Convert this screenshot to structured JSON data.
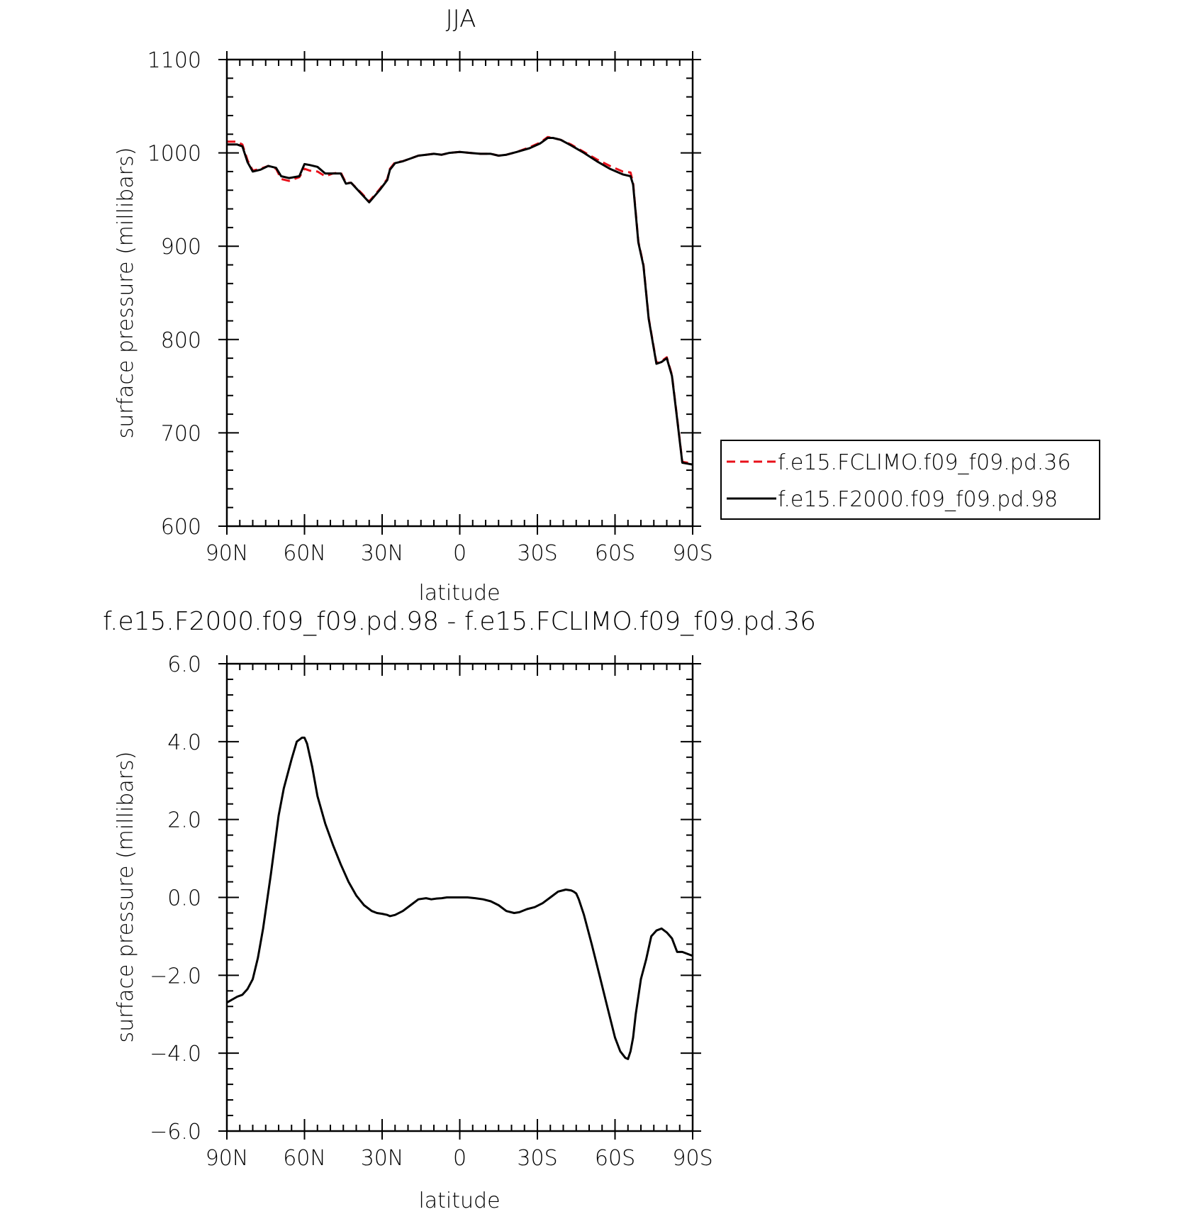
{
  "chart_data": [
    {
      "type": "line",
      "title": "JJA",
      "xlabel": "latitude",
      "ylabel": "surface pressure (millibars)",
      "xlim": [
        90,
        -90
      ],
      "ylim": [
        600,
        1100
      ],
      "x_ticks": [
        90,
        60,
        30,
        0,
        -30,
        -60,
        -90
      ],
      "x_tick_labels": [
        "90N",
        "60N",
        "30N",
        "0",
        "30S",
        "60S",
        "90S"
      ],
      "y_ticks": [
        600,
        700,
        800,
        900,
        1000,
        1100
      ],
      "y_tick_labels": [
        "600",
        "700",
        "800",
        "900",
        "1000",
        "1100"
      ],
      "grid": false,
      "legend_position": "right",
      "series": [
        {
          "name": "f.e15.FCLIMO.f09_f09.pd.36",
          "color": "#e8101a",
          "dash": "dashed",
          "x": [
            90,
            86,
            84,
            82,
            80,
            77,
            74,
            71,
            69,
            66,
            62,
            60,
            58,
            55,
            52,
            49,
            46,
            44,
            42,
            38,
            35,
            31,
            28,
            27,
            25,
            22,
            19,
            16,
            13,
            10,
            7,
            4,
            0,
            -4,
            -8,
            -12,
            -15,
            -18,
            -22,
            -27,
            -31,
            -34,
            -36,
            -39,
            -43,
            -48,
            -53,
            -58,
            -63,
            -66,
            -67,
            -69,
            -71,
            -73,
            -76,
            -78,
            -80,
            -82,
            -84,
            -86,
            -88,
            -90
          ],
          "y": [
            1012,
            1012,
            1009,
            992,
            981,
            983,
            986,
            983,
            972,
            970,
            974,
            983,
            981,
            980,
            975,
            978,
            979,
            968,
            968,
            957,
            948,
            961,
            972,
            983,
            990,
            991,
            994,
            997,
            998,
            999,
            998,
            1000,
            1001,
            1000,
            999,
            999,
            997,
            998,
            1001,
            1006,
            1011,
            1017,
            1016,
            1014,
            1009,
            1001,
            993,
            986,
            980,
            979,
            968,
            905,
            880,
            823,
            775,
            777,
            781,
            762,
            716,
            669,
            668,
            667
          ]
        },
        {
          "name": "f.e15.F2000.f09_f09.pd.98",
          "color": "#000000",
          "dash": "solid",
          "x": [
            90,
            86,
            84,
            82,
            80,
            77,
            74,
            71,
            69,
            66,
            62,
            60,
            58,
            55,
            52,
            49,
            46,
            44,
            42,
            38,
            35,
            31,
            28,
            27,
            25,
            22,
            19,
            16,
            13,
            10,
            7,
            4,
            0,
            -4,
            -8,
            -12,
            -15,
            -18,
            -22,
            -27,
            -31,
            -34,
            -36,
            -39,
            -43,
            -48,
            -53,
            -58,
            -63,
            -66,
            -67,
            -69,
            -71,
            -73,
            -76,
            -78,
            -80,
            -82,
            -84,
            -86,
            -88,
            -90
          ],
          "y": [
            1009,
            1009,
            1007,
            990,
            980,
            982,
            986,
            984,
            975,
            973,
            975,
            988,
            987,
            985,
            978,
            978,
            978,
            967,
            968,
            956,
            947,
            960,
            971,
            982,
            989,
            991,
            994,
            997,
            998,
            999,
            998,
            1000,
            1001,
            1000,
            999,
            999,
            997,
            998,
            1001,
            1005,
            1010,
            1016,
            1016,
            1014,
            1008,
            1000,
            991,
            983,
            977,
            975,
            966,
            904,
            879,
            822,
            774,
            776,
            780,
            761,
            715,
            668,
            667,
            666
          ]
        }
      ]
    },
    {
      "type": "line",
      "title": "f.e15.F2000.f09_f09.pd.98 - f.e15.FCLIMO.f09_f09.pd.36",
      "xlabel": "latitude",
      "ylabel": "surface pressure (millibars)",
      "xlim": [
        90,
        -90
      ],
      "ylim": [
        -6,
        6
      ],
      "x_ticks": [
        90,
        60,
        30,
        0,
        -30,
        -60,
        -90
      ],
      "x_tick_labels": [
        "90N",
        "60N",
        "30N",
        "0",
        "30S",
        "60S",
        "90S"
      ],
      "y_ticks": [
        -6,
        -4,
        -2,
        0,
        2,
        4,
        6
      ],
      "y_tick_labels": [
        "−6.0",
        "−4.0",
        "−2.0",
        "0.0",
        "2.0",
        "4.0",
        "6.0"
      ],
      "grid": false,
      "series": [
        {
          "color": "#000000",
          "dash": "solid",
          "x": [
            90,
            86,
            84,
            82,
            80,
            78,
            76,
            73,
            70,
            68,
            65,
            63,
            61,
            60,
            59,
            57,
            55,
            52,
            49,
            46,
            43,
            40,
            37,
            34,
            32,
            30,
            28,
            27,
            25,
            22,
            19,
            16,
            13,
            11,
            9,
            7,
            5,
            2,
            0,
            -3,
            -6,
            -9,
            -12,
            -15,
            -18,
            -21,
            -23,
            -26,
            -29,
            -32,
            -35,
            -38,
            -41,
            -43,
            -44,
            -45,
            -46,
            -48,
            -51,
            -54,
            -57,
            -60,
            -62,
            -64,
            -65,
            -66,
            -67,
            -68,
            -70,
            -72,
            -74,
            -76,
            -78,
            -80,
            -82,
            -84,
            -86,
            -88,
            -90
          ],
          "y": [
            -2.7,
            -2.55,
            -2.5,
            -2.35,
            -2.1,
            -1.55,
            -0.8,
            0.6,
            2.1,
            2.8,
            3.55,
            4.0,
            4.1,
            4.1,
            3.95,
            3.35,
            2.6,
            1.9,
            1.35,
            0.85,
            0.4,
            0.05,
            -0.2,
            -0.35,
            -0.4,
            -0.42,
            -0.45,
            -0.48,
            -0.45,
            -0.35,
            -0.2,
            -0.05,
            -0.02,
            -0.05,
            -0.03,
            -0.02,
            0.0,
            0.0,
            0.0,
            0.0,
            -0.02,
            -0.05,
            -0.1,
            -0.2,
            -0.35,
            -0.4,
            -0.38,
            -0.3,
            -0.25,
            -0.15,
            0.0,
            0.15,
            0.2,
            0.18,
            0.15,
            0.1,
            -0.05,
            -0.45,
            -1.2,
            -2.0,
            -2.8,
            -3.6,
            -3.95,
            -4.12,
            -4.15,
            -3.95,
            -3.6,
            -3.0,
            -2.1,
            -1.6,
            -1.0,
            -0.85,
            -0.8,
            -0.9,
            -1.05,
            -1.4,
            -1.4,
            -1.45,
            -1.5
          ]
        }
      ]
    }
  ]
}
